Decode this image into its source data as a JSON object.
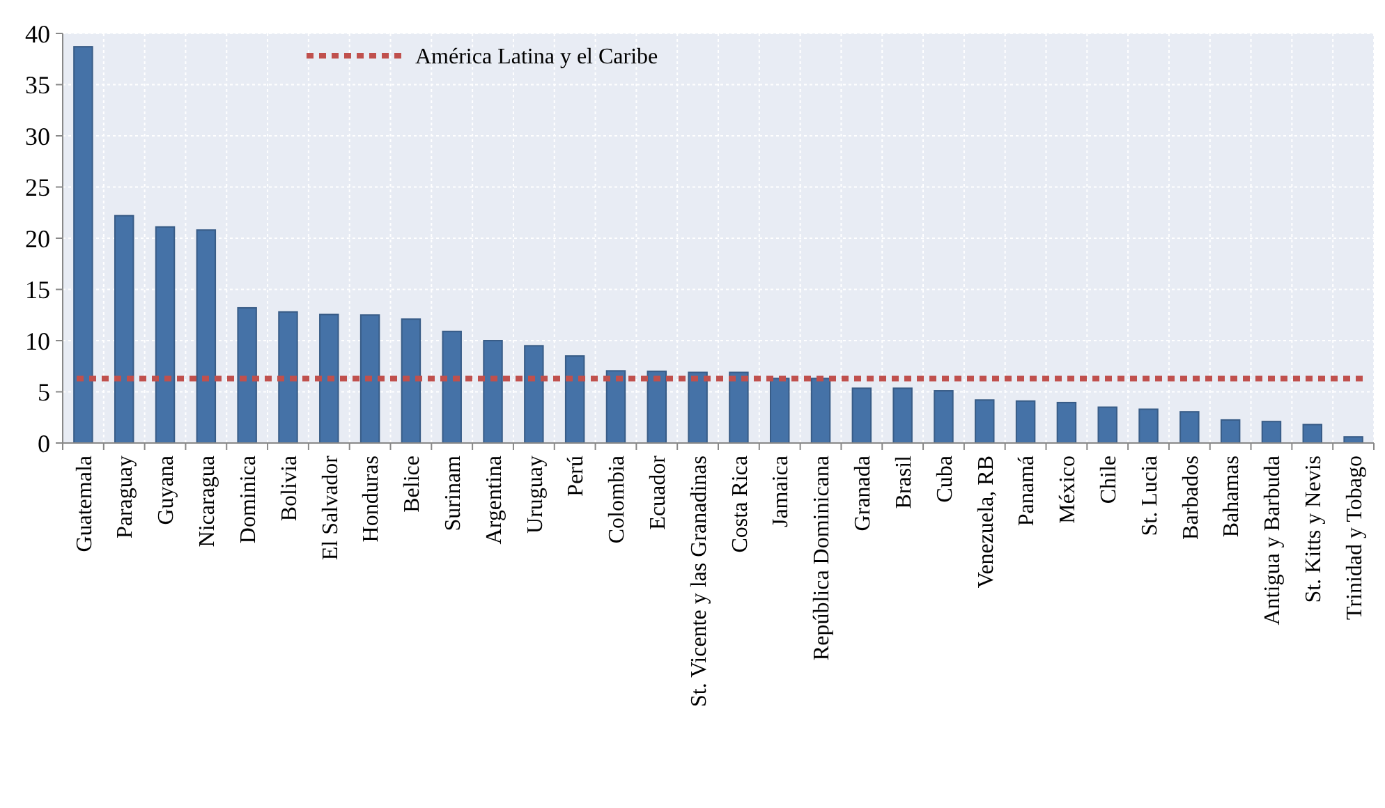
{
  "chart_data": {
    "type": "bar",
    "categories": [
      "Guatemala",
      "Paraguay",
      "Guyana",
      "Nicaragua",
      "Dominica",
      "Bolivia",
      "El Salvador",
      "Honduras",
      "Belice",
      "Surinam",
      "Argentina",
      "Uruguay",
      "Perú",
      "Colombia",
      "Ecuador",
      "St. Vicente y las Granadinas",
      "Costa Rica",
      "Jamaica",
      "República Dominicana",
      "Granada",
      "Brasil",
      "Cuba",
      "Venezuela, RB",
      "Panamá",
      "México",
      "Chile",
      "St. Lucia",
      "Barbados",
      "Bahamas",
      "Antigua y Barbuda",
      "St. Kitts y Nevis",
      "Trinidad y Tobago"
    ],
    "series": [
      {
        "color": "#4572a7",
        "values": [
          38.7,
          22.2,
          21.1,
          20.8,
          13.2,
          12.8,
          12.55,
          12.5,
          12.1,
          10.9,
          10.0,
          9.5,
          8.5,
          7.05,
          7.0,
          6.9,
          6.9,
          6.3,
          6.3,
          5.35,
          5.35,
          5.1,
          4.2,
          4.1,
          3.95,
          3.5,
          3.3,
          3.05,
          2.25,
          2.1,
          1.8,
          0.6
        ]
      }
    ],
    "ylim": [
      0,
      40
    ],
    "yticks": [
      0,
      5,
      10,
      15,
      20,
      25,
      30,
      35,
      40
    ],
    "grid": true,
    "legend": "top left",
    "ref_lines": [
      {
        "axis": "y",
        "value": 6.3,
        "label": "América Latina y el Caribe",
        "color": "#c0504d",
        "line_style": "dotted"
      }
    ]
  }
}
